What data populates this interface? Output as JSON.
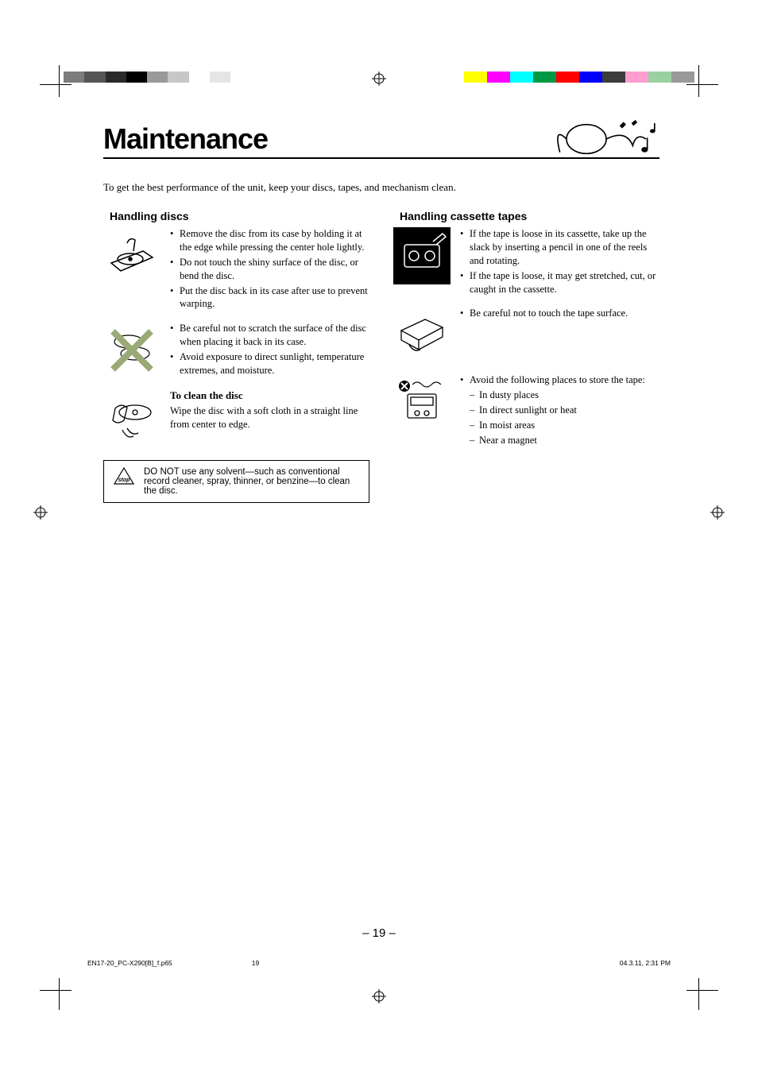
{
  "title": "Maintenance",
  "intro": "To get the best performance of the unit, keep your discs, tapes, and mechanism clean.",
  "discs": {
    "heading": "Handling discs",
    "b1": [
      "Remove the disc from its case by holding it at the edge while pressing the center hole lightly.",
      "Do not touch the shiny surface of the disc, or bend the disc.",
      "Put the disc back in its case after use to prevent warping."
    ],
    "b2": [
      "Be careful not to scratch the surface of the disc when placing it back in its case.",
      "Avoid exposure to direct sunlight, temperature extremes, and moisture."
    ],
    "clean_heading": "To clean the disc",
    "clean_text": "Wipe the disc with a soft cloth in a straight line from center to edge.",
    "warning": "DO NOT use any solvent—such as conventional record cleaner, spray, thinner, or benzine—to clean the disc."
  },
  "tapes": {
    "heading": "Handling cassette tapes",
    "b1": [
      "If the tape is loose in its cassette, take up the slack by inserting a pencil in one of the reels and rotating.",
      "If the tape is loose, it may get stretched, cut, or caught in the cassette."
    ],
    "b2": [
      "Be careful not to touch the tape surface."
    ],
    "b3_intro": "Avoid the following places to store the tape:",
    "b3_sub": [
      "In dusty places",
      "In direct sunlight or heat",
      "In moist areas",
      "Near a magnet"
    ]
  },
  "page_number": "– 19 –",
  "footer": {
    "file": "EN17-20_PC-X290[B]_f.p65",
    "page": "19",
    "datetime": "04.3.11, 2:31 PM"
  },
  "colorbars": {
    "left": [
      "#7c7c7c",
      "#555555",
      "#2a2a2a",
      "#000000",
      "#9a9a9a",
      "#c7c7c7",
      "#ffffff",
      "#e5e5e5"
    ],
    "right": [
      "#ffff00",
      "#ff00ff",
      "#00ffff",
      "#009944",
      "#ff0000",
      "#0000ff",
      "#3d3d3d",
      "#ff9ecf",
      "#9ad1a0",
      "#9a9a9a"
    ]
  }
}
